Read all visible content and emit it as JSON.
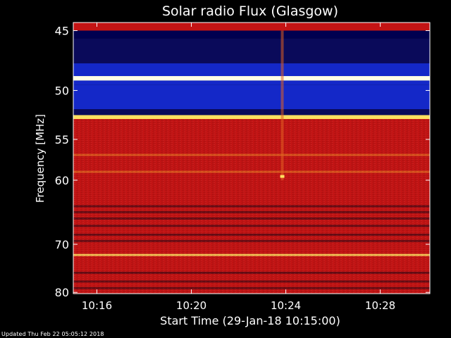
{
  "chart_data": {
    "type": "heatmap",
    "title": "Solar radio Flux (Glasgow)",
    "xlabel": "Start Time (29-Jan-18 10:15:00)",
    "ylabel": "Frequency [MHz]",
    "x_ticks": [
      "10:16",
      "10:20",
      "10:24",
      "10:28"
    ],
    "x_tick_minutes": [
      1,
      5,
      9,
      13
    ],
    "xlim_minutes_after_start": [
      0,
      15.1
    ],
    "y_ticks": [
      45,
      50,
      55,
      60,
      70,
      80
    ],
    "ylim": [
      44.4,
      80.3
    ],
    "y_scale": "reciprocal",
    "bands": [
      {
        "f_from": 44.4,
        "f_to": 45.0,
        "level": "red"
      },
      {
        "f_from": 45.0,
        "f_to": 45.6,
        "level": "dark-blue"
      },
      {
        "f_from": 45.6,
        "f_to": 47.6,
        "level": "navy"
      },
      {
        "f_from": 47.6,
        "f_to": 48.7,
        "level": "blue"
      },
      {
        "f_from": 48.7,
        "f_to": 49.1,
        "level": "white"
      },
      {
        "f_from": 49.1,
        "f_to": 49.5,
        "level": "blue"
      },
      {
        "f_from": 49.5,
        "f_to": 51.8,
        "level": "blue"
      },
      {
        "f_from": 51.8,
        "f_to": 52.4,
        "level": "navy"
      },
      {
        "f_from": 52.4,
        "f_to": 52.8,
        "level": "yellow"
      },
      {
        "f_from": 52.8,
        "f_to": 80.3,
        "level": "red"
      }
    ],
    "lines": [
      {
        "freq": 56.8,
        "level": "orange"
      },
      {
        "freq": 58.9,
        "level": "orange"
      },
      {
        "freq": 63.7,
        "level": "dark"
      },
      {
        "freq": 64.6,
        "level": "dark"
      },
      {
        "freq": 65.6,
        "level": "dark"
      },
      {
        "freq": 66.8,
        "level": "dark"
      },
      {
        "freq": 68.3,
        "level": "dark"
      },
      {
        "freq": 69.4,
        "level": "dark"
      },
      {
        "freq": 72.0,
        "level": "yellow"
      },
      {
        "freq": 75.6,
        "level": "dark"
      },
      {
        "freq": 77.5,
        "level": "dark"
      },
      {
        "freq": 79.0,
        "level": "dark"
      }
    ],
    "burst": {
      "time_minutes": 8.85,
      "freq_from": 45.0,
      "freq_to": 60.0,
      "peak_freq": 59.5
    },
    "colors": {
      "red": "#c41414",
      "dark": "#5a0a14",
      "navy": "#0a0a5a",
      "dark-blue": "#000050",
      "blue": "#1428c8",
      "white": "#ffffe6",
      "yellow": "#ffe060",
      "orange": "#e06020"
    }
  },
  "footer": "Updated Thu Feb 22 05:05:12 2018"
}
